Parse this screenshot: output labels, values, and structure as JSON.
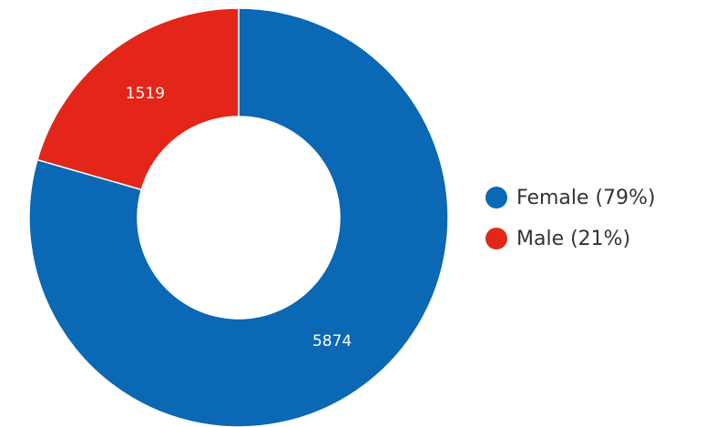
{
  "chart_data": {
    "type": "donut",
    "categories": [
      "Female (79%)",
      "Male (21%)"
    ],
    "values": [
      5874,
      1519
    ],
    "colors": [
      "#0a68b4",
      "#e32619"
    ]
  }
}
